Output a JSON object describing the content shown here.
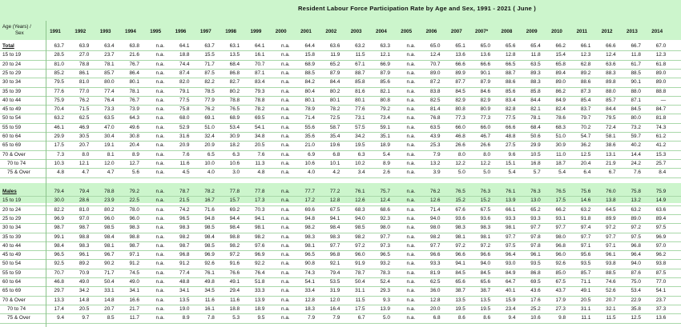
{
  "title": "Resident  Labour  Force  Participation  Rate by  Age  and  Sex, 1991 - 2021  ( June )",
  "corner_header": [
    "Age (Years) /",
    "Sex"
  ],
  "years": [
    "1991",
    "1992",
    "1993",
    "1994",
    "1995",
    "1996",
    "1997",
    "1998",
    "1999",
    "2000",
    "2001",
    "2002",
    "2003",
    "2004",
    "2005",
    "2006",
    "2007",
    "2007*",
    "2008",
    "2009",
    "2010",
    "2011",
    "2012",
    "2013",
    "2014"
  ],
  "sections": [
    {
      "label": "Total",
      "rows": [
        {
          "label": "Total",
          "values": [
            "63.7",
            "63.9",
            "63.4",
            "63.8",
            "n.a.",
            "64.1",
            "63.7",
            "63.1",
            "64.1",
            "n.a.",
            "64.4",
            "63.6",
            "63.2",
            "63.3",
            "n.a.",
            "65.0",
            "65.1",
            "65.0",
            "65.6",
            "65.4",
            "66.2",
            "66.1",
            "66.6",
            "66.7",
            "67.0"
          ]
        },
        {
          "label": "15 to 19",
          "values": [
            "28.5",
            "27.0",
            "23.7",
            "21.6",
            "n.a.",
            "18.8",
            "15.5",
            "13.5",
            "16.1",
            "n.a.",
            "15.8",
            "11.9",
            "11.5",
            "12.1",
            "n.a.",
            "12.4",
            "13.6",
            "13.6",
            "12.8",
            "11.8",
            "15.4",
            "12.3",
            "12.4",
            "11.8",
            "12.3"
          ]
        },
        {
          "label": "20 to 24",
          "values": [
            "81.0",
            "78.8",
            "78.1",
            "76.7",
            "n.a.",
            "74.4",
            "71.7",
            "68.4",
            "70.7",
            "n.a.",
            "68.9",
            "65.2",
            "67.1",
            "66.9",
            "n.a.",
            "70.7",
            "66.6",
            "66.6",
            "66.5",
            "63.5",
            "65.8",
            "62.8",
            "63.6",
            "61.7",
            "61.8"
          ]
        },
        {
          "label": "25 to 29",
          "values": [
            "85.2",
            "86.1",
            "85.7",
            "86.4",
            "n.a.",
            "87.4",
            "87.5",
            "86.8",
            "87.1",
            "n.a.",
            "88.5",
            "87.9",
            "88.7",
            "87.9",
            "n.a.",
            "89.0",
            "89.9",
            "90.1",
            "88.7",
            "89.3",
            "89.4",
            "89.2",
            "88.3",
            "88.5",
            "89.0"
          ]
        },
        {
          "label": "30 to 34",
          "values": [
            "79.5",
            "81.0",
            "80.0",
            "80.1",
            "n.a.",
            "82.0",
            "82.2",
            "82.7",
            "83.4",
            "n.a.",
            "84.2",
            "84.4",
            "85.8",
            "85.6",
            "n.a.",
            "87.2",
            "87.7",
            "87.9",
            "88.6",
            "88.3",
            "89.0",
            "88.6",
            "89.8",
            "90.1",
            "89.0"
          ]
        },
        {
          "label": "35 to 39",
          "values": [
            "77.6",
            "77.0",
            "77.4",
            "78.1",
            "n.a.",
            "79.1",
            "78.5",
            "80.2",
            "79.3",
            "n.a.",
            "80.4",
            "80.2",
            "81.6",
            "82.1",
            "n.a.",
            "83.8",
            "84.5",
            "84.6",
            "85.6",
            "85.8",
            "86.2",
            "87.3",
            "88.0",
            "88.0",
            "88.8"
          ]
        },
        {
          "label": "40 to 44",
          "values": [
            "75.9",
            "76.2",
            "76.4",
            "76.7",
            "n.a.",
            "77.5",
            "77.9",
            "78.8",
            "78.8",
            "n.a.",
            "80.1",
            "80.1",
            "80.1",
            "80.8",
            "n.a.",
            "82.5",
            "82.9",
            "82.9",
            "83.4",
            "84.4",
            "84.9",
            "85.4",
            "85.7",
            "87.1",
            "—"
          ]
        },
        {
          "label": "45 to 49",
          "values": [
            "70.4",
            "71.5",
            "73.3",
            "73.9",
            "n.a.",
            "75.8",
            "76.2",
            "76.5",
            "78.2",
            "n.a.",
            "78.9",
            "78.2",
            "77.6",
            "79.2",
            "n.a.",
            "81.4",
            "80.8",
            "80.9",
            "82.8",
            "82.1",
            "82.4",
            "83.7",
            "84.4",
            "84.5",
            "84.7"
          ]
        },
        {
          "label": "50 to 54",
          "values": [
            "63.2",
            "62.5",
            "63.5",
            "64.3",
            "n.a.",
            "68.0",
            "69.1",
            "68.9",
            "69.5",
            "n.a.",
            "71.4",
            "72.5",
            "73.1",
            "73.4",
            "n.a.",
            "76.8",
            "77.3",
            "77.3",
            "77.5",
            "78.1",
            "78.6",
            "79.7",
            "79.5",
            "80.0",
            "81.8"
          ]
        },
        {
          "label": "55 to 59",
          "values": [
            "46.1",
            "46.9",
            "47.0",
            "49.6",
            "n.a.",
            "52.9",
            "51.0",
            "53.4",
            "54.1",
            "n.a.",
            "55.6",
            "58.7",
            "57.5",
            "59.1",
            "n.a.",
            "63.5",
            "66.0",
            "66.0",
            "66.6",
            "68.4",
            "68.3",
            "70.2",
            "72.4",
            "73.2",
            "74.3"
          ]
        },
        {
          "label": "60 to 64",
          "values": [
            "29.9",
            "30.5",
            "30.4",
            "30.8",
            "n.a.",
            "31.6",
            "32.4",
            "30.9",
            "34.8",
            "n.a.",
            "35.6",
            "35.4",
            "34.2",
            "35.1",
            "n.a.",
            "43.9",
            "46.8",
            "46.7",
            "48.8",
            "50.6",
            "51.0",
            "54.7",
            "58.1",
            "59.7",
            "61.2"
          ]
        },
        {
          "label": "65 to 69",
          "values": [
            "17.5",
            "20.7",
            "19.1",
            "20.4",
            "n.a.",
            "20.9",
            "20.9",
            "18.2",
            "20.5",
            "n.a.",
            "21.0",
            "19.6",
            "19.5",
            "18.9",
            "n.a.",
            "25.3",
            "26.6",
            "26.6",
            "27.5",
            "29.9",
            "30.9",
            "36.2",
            "38.6",
            "40.2",
            "41.2"
          ]
        },
        {
          "label": "70 & Over",
          "values": [
            "7.3",
            "8.0",
            "8.1",
            "8.9",
            "n.a.",
            "7.6",
            "6.5",
            "6.3",
            "7.6",
            "n.a.",
            "6.9",
            "6.8",
            "6.3",
            "5.4",
            "n.a.",
            "7.9",
            "8.0",
            "8.0",
            "9.6",
            "10.5",
            "11.0",
            "12.5",
            "13.1",
            "14.4",
            "15.3"
          ]
        },
        {
          "label": "70 to 74",
          "indent": true,
          "values": [
            "10.3",
            "12.1",
            "12.0",
            "12.7",
            "n.a.",
            "11.6",
            "10.0",
            "10.6",
            "11.3",
            "n.a.",
            "10.6",
            "10.1",
            "10.2",
            "8.9",
            "n.a.",
            "13.2",
            "12.2",
            "12.2",
            "15.1",
            "16.8",
            "18.7",
            "20.4",
            "21.9",
            "24.2",
            "25.7"
          ]
        },
        {
          "label": "75 & Over",
          "indent": true,
          "values": [
            "4.8",
            "4.7",
            "4.7",
            "5.6",
            "n.a.",
            "4.5",
            "4.0",
            "3.0",
            "4.8",
            "n.a.",
            "4.0",
            "4.2",
            "3.4",
            "2.6",
            "n.a.",
            "3.9",
            "5.0",
            "5.0",
            "5.4",
            "5.7",
            "5.4",
            "6.4",
            "6.7",
            "7.6",
            "8.4"
          ]
        }
      ]
    },
    {
      "label": "Males",
      "rows": [
        {
          "label": "Males",
          "values": [
            "79.4",
            "79.4",
            "78.8",
            "79.2",
            "n.a.",
            "78.7",
            "78.2",
            "77.8",
            "77.8",
            "n.a.",
            "77.7",
            "77.2",
            "76.1",
            "75.7",
            "n.a.",
            "76.2",
            "76.5",
            "76.3",
            "76.1",
            "76.3",
            "76.5",
            "75.6",
            "76.0",
            "75.8",
            "75.9"
          ]
        },
        {
          "label": "15 to 19",
          "values": [
            "30.0",
            "28.6",
            "23.9",
            "22.5",
            "n.a.",
            "21.5",
            "16.7",
            "15.7",
            "17.3",
            "n.a.",
            "17.2",
            "12.8",
            "12.6",
            "12.4",
            "n.a.",
            "12.6",
            "15.2",
            "15.2",
            "13.9",
            "13.0",
            "17.5",
            "14.6",
            "13.8",
            "13.2",
            "14.9"
          ]
        },
        {
          "label": "20 to 24",
          "values": [
            "82.2",
            "81.0",
            "80.2",
            "78.0",
            "n.a.",
            "74.2",
            "71.6",
            "69.2",
            "70.3",
            "n.a.",
            "69.6",
            "67.5",
            "68.3",
            "68.6",
            "n.a.",
            "71.4",
            "67.6",
            "67.5",
            "66.1",
            "65.2",
            "66.2",
            "63.2",
            "64.5",
            "63.2",
            "63.6"
          ]
        },
        {
          "label": "25 to 29",
          "values": [
            "96.9",
            "97.0",
            "96.0",
            "96.0",
            "n.a.",
            "96.5",
            "94.8",
            "94.4",
            "94.1",
            "n.a.",
            "94.8",
            "94.1",
            "94.0",
            "92.3",
            "n.a.",
            "94.0",
            "93.6",
            "93.6",
            "93.3",
            "93.3",
            "93.1",
            "91.8",
            "89.9",
            "89.0",
            "89.4"
          ]
        },
        {
          "label": "30 to 34",
          "values": [
            "98.7",
            "98.7",
            "98.5",
            "98.3",
            "n.a.",
            "98.3",
            "98.5",
            "98.4",
            "98.1",
            "n.a.",
            "98.2",
            "98.4",
            "98.5",
            "98.0",
            "n.a.",
            "98.0",
            "98.3",
            "98.3",
            "98.1",
            "97.7",
            "97.7",
            "97.4",
            "97.2",
            "97.2",
            "97.5"
          ]
        },
        {
          "label": "35 to 39",
          "values": [
            "99.1",
            "98.8",
            "98.4",
            "98.8",
            "n.a.",
            "98.2",
            "98.4",
            "98.8",
            "98.2",
            "n.a.",
            "98.3",
            "98.3",
            "98.2",
            "97.7",
            "n.a.",
            "98.2",
            "98.1",
            "98.1",
            "97.7",
            "97.8",
            "98.0",
            "97.7",
            "97.7",
            "97.5",
            "96.9"
          ]
        },
        {
          "label": "40 to 44",
          "values": [
            "98.4",
            "98.3",
            "98.1",
            "98.7",
            "n.a.",
            "98.7",
            "98.5",
            "98.2",
            "97.6",
            "n.a.",
            "98.1",
            "97.7",
            "97.2",
            "97.3",
            "n.a.",
            "97.7",
            "97.2",
            "97.2",
            "97.5",
            "97.8",
            "96.8",
            "97.1",
            "97.1",
            "96.8",
            "97.0"
          ]
        },
        {
          "label": "45 to 49",
          "values": [
            "96.5",
            "96.1",
            "96.7",
            "97.1",
            "n.a.",
            "96.8",
            "96.9",
            "97.2",
            "96.9",
            "n.a.",
            "96.5",
            "96.8",
            "96.0",
            "96.5",
            "n.a.",
            "96.6",
            "96.6",
            "96.6",
            "96.4",
            "96.1",
            "96.0",
            "95.6",
            "96.1",
            "96.4",
            "96.2"
          ]
        },
        {
          "label": "50 to 54",
          "values": [
            "92.5",
            "89.2",
            "90.2",
            "91.2",
            "n.a.",
            "91.2",
            "92.6",
            "91.6",
            "92.2",
            "n.a.",
            "90.8",
            "92.1",
            "91.9",
            "93.2",
            "n.a.",
            "93.3",
            "94.1",
            "94.0",
            "93.0",
            "93.5",
            "92.6",
            "93.5",
            "93.8",
            "94.0",
            "93.8"
          ]
        },
        {
          "label": "55 to 59",
          "values": [
            "70.7",
            "70.9",
            "71.7",
            "74.5",
            "n.a.",
            "77.4",
            "76.1",
            "76.6",
            "76.4",
            "n.a.",
            "74.3",
            "79.4",
            "78.7",
            "78.3",
            "n.a.",
            "81.9",
            "84.5",
            "84.5",
            "84.9",
            "86.8",
            "85.0",
            "85.7",
            "88.5",
            "87.6",
            "87.5"
          ]
        },
        {
          "label": "60 to 64",
          "values": [
            "46.8",
            "49.0",
            "50.4",
            "49.0",
            "n.a.",
            "48.8",
            "49.8",
            "49.1",
            "51.8",
            "n.a.",
            "54.1",
            "53.5",
            "50.4",
            "52.4",
            "n.a.",
            "62.5",
            "65.6",
            "65.6",
            "64.7",
            "69.5",
            "67.5",
            "71.1",
            "74.6",
            "75.0",
            "77.0"
          ]
        },
        {
          "label": "65 to 69",
          "values": [
            "29.7",
            "34.2",
            "33.1",
            "34.1",
            "n.a.",
            "34.1",
            "34.5",
            "29.4",
            "33.3",
            "n.a.",
            "33.4",
            "31.9",
            "31.1",
            "29.3",
            "n.a.",
            "36.0",
            "38.7",
            "38.7",
            "40.1",
            "43.6",
            "43.7",
            "49.1",
            "52.6",
            "53.4",
            "54.1"
          ]
        },
        {
          "label": "70 & Over",
          "values": [
            "13.3",
            "14.8",
            "14.8",
            "16.6",
            "n.a.",
            "13.5",
            "11.6",
            "11.6",
            "13.9",
            "n.a.",
            "12.8",
            "12.0",
            "11.5",
            "9.3",
            "n.a.",
            "12.8",
            "13.5",
            "13.5",
            "15.9",
            "17.6",
            "17.9",
            "20.5",
            "20.7",
            "22.9",
            "23.7"
          ]
        },
        {
          "label": "70 to 74",
          "indent": true,
          "values": [
            "17.4",
            "20.5",
            "20.7",
            "21.7",
            "n.a.",
            "19.0",
            "16.1",
            "18.8",
            "18.9",
            "n.a.",
            "18.3",
            "16.4",
            "17.5",
            "13.9",
            "n.a.",
            "20.0",
            "19.5",
            "19.5",
            "23.4",
            "25.2",
            "27.3",
            "31.1",
            "32.1",
            "35.8",
            "37.3"
          ]
        },
        {
          "label": "75 & Over",
          "indent": true,
          "values": [
            "9.4",
            "9.7",
            "8.5",
            "11.7",
            "n.a.",
            "8.9",
            "7.8",
            "5.3",
            "9.5",
            "n.a.",
            "7.9",
            "7.9",
            "6.7",
            "5.0",
            "n.a.",
            "6.8",
            "8.6",
            "8.6",
            "9.4",
            "10.6",
            "9.8",
            "11.1",
            "11.5",
            "12.5",
            "13.6"
          ]
        }
      ]
    }
  ]
}
